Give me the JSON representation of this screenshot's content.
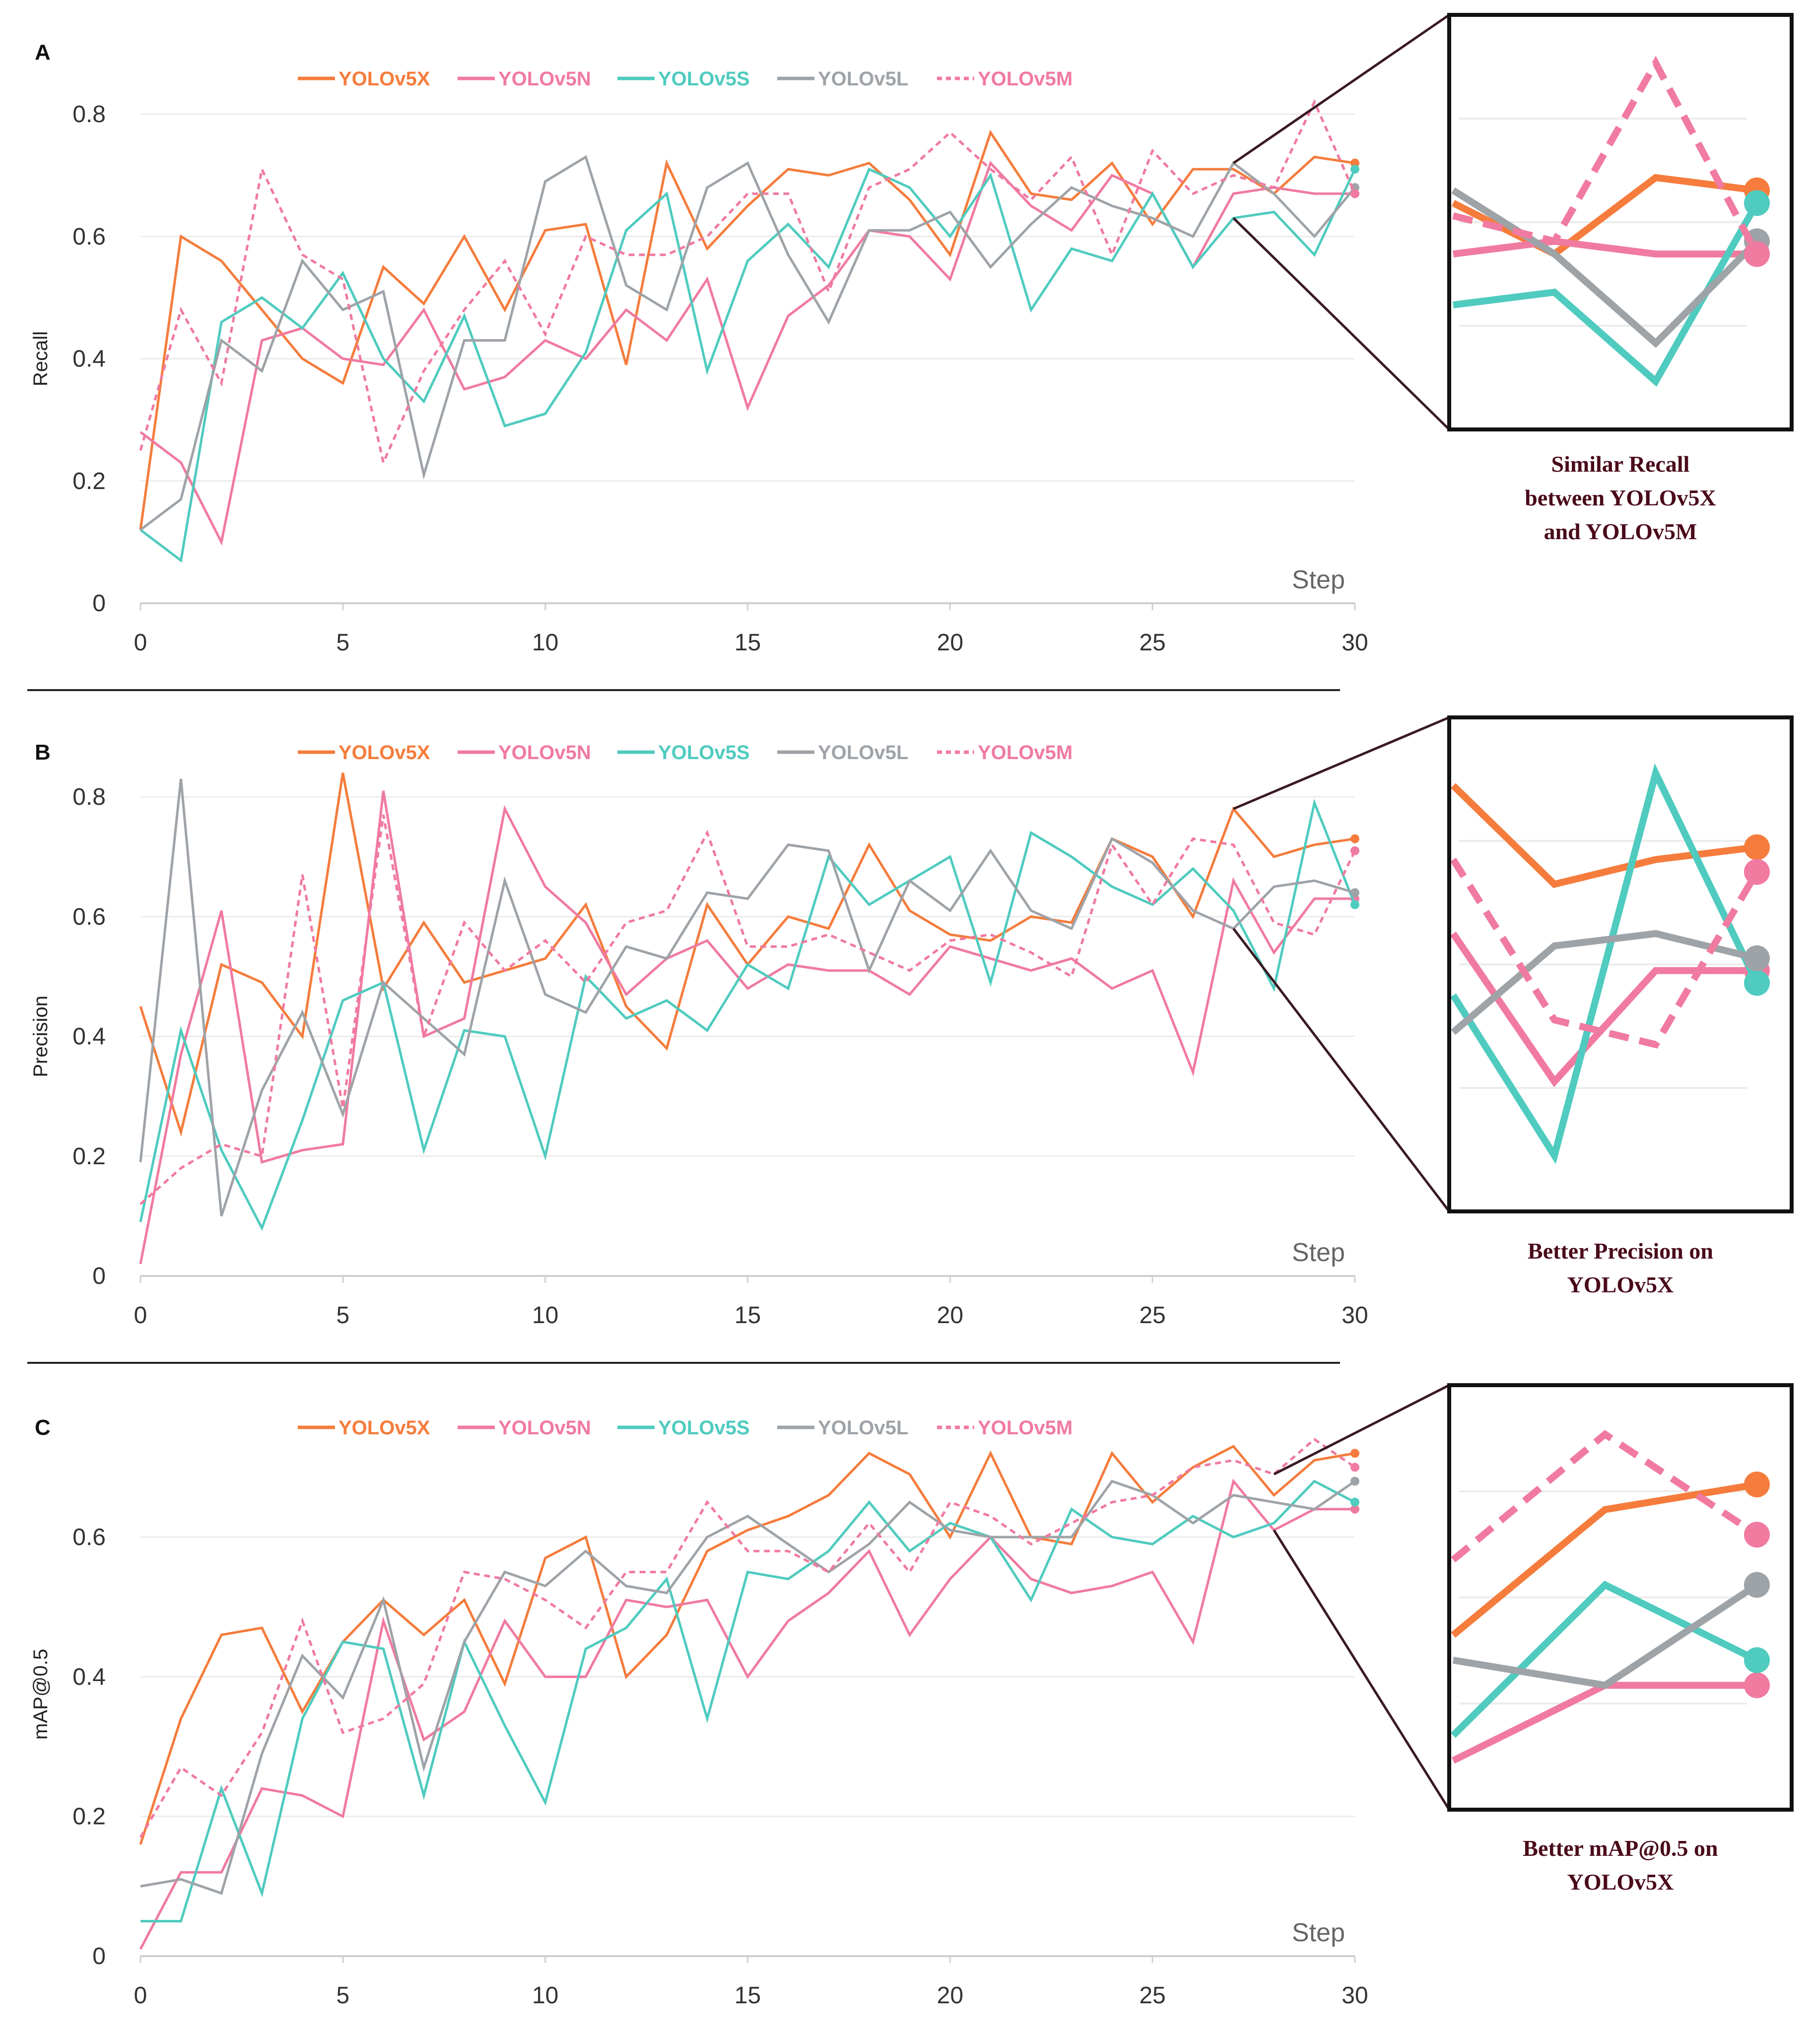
{
  "colors": {
    "YOLOv5X": "#f57c3c",
    "YOLOv5N": "#f07aa0",
    "YOLOv5S": "#4fcbbf",
    "YOLOv5L": "#9ea3a8",
    "YOLOv5M": "#f07aa0",
    "zoom_border": "#111111",
    "connector": "#3a1a22",
    "caption": "#4a0a1a"
  },
  "legend": [
    {
      "name": "YOLOv5X",
      "style": "solid"
    },
    {
      "name": "YOLOv5N",
      "style": "solid"
    },
    {
      "name": "YOLOv5S",
      "style": "solid"
    },
    {
      "name": "YOLOv5L",
      "style": "solid"
    },
    {
      "name": "YOLOv5M",
      "style": "dotted"
    }
  ],
  "chart_data": [
    {
      "panel": "A",
      "type": "line",
      "ylabel": "Recall",
      "xlabel": "Step",
      "xlim": [
        0,
        30
      ],
      "ylim": [
        0,
        0.8
      ],
      "xticks": [
        "0",
        "5",
        "10",
        "15",
        "20",
        "25",
        "30"
      ],
      "yticks": [
        "0",
        "0.2",
        "0.4",
        "0.6",
        "0.8"
      ],
      "zoom": {
        "x_range": [
          27,
          30
        ],
        "caption": [
          "Similar Recall",
          "between YOLOv5X",
          "and YOLOv5M"
        ]
      },
      "series": [
        {
          "name": "YOLOv5X",
          "values": [
            0.12,
            0.6,
            0.56,
            0.48,
            0.4,
            0.36,
            0.55,
            0.49,
            0.6,
            0.48,
            0.61,
            0.62,
            0.39,
            0.72,
            0.58,
            0.65,
            0.71,
            0.7,
            0.72,
            0.66,
            0.57,
            0.77,
            0.67,
            0.66,
            0.72,
            0.62,
            0.71,
            0.71,
            0.67,
            0.73,
            0.72
          ]
        },
        {
          "name": "YOLOv5N",
          "values": [
            0.28,
            0.23,
            0.1,
            0.43,
            0.45,
            0.4,
            0.39,
            0.48,
            0.35,
            0.37,
            0.43,
            0.4,
            0.48,
            0.43,
            0.53,
            0.32,
            0.47,
            0.52,
            0.61,
            0.6,
            0.53,
            0.72,
            0.65,
            0.61,
            0.7,
            0.67,
            0.55,
            0.67,
            0.68,
            0.67,
            0.67
          ]
        },
        {
          "name": "YOLOv5S",
          "values": [
            0.12,
            0.07,
            0.46,
            0.5,
            0.45,
            0.54,
            0.4,
            0.33,
            0.47,
            0.29,
            0.31,
            0.41,
            0.61,
            0.67,
            0.38,
            0.56,
            0.62,
            0.55,
            0.71,
            0.68,
            0.6,
            0.7,
            0.48,
            0.58,
            0.56,
            0.67,
            0.55,
            0.63,
            0.64,
            0.57,
            0.71
          ]
        },
        {
          "name": "YOLOv5L",
          "values": [
            0.12,
            0.17,
            0.43,
            0.38,
            0.56,
            0.48,
            0.51,
            0.21,
            0.43,
            0.43,
            0.69,
            0.73,
            0.52,
            0.48,
            0.68,
            0.72,
            0.57,
            0.46,
            0.61,
            0.61,
            0.64,
            0.55,
            0.62,
            0.68,
            0.65,
            0.63,
            0.6,
            0.72,
            0.67,
            0.6,
            0.68
          ]
        },
        {
          "name": "YOLOv5M",
          "values": [
            0.25,
            0.48,
            0.36,
            0.71,
            0.57,
            0.53,
            0.23,
            0.38,
            0.48,
            0.56,
            0.44,
            0.6,
            0.57,
            0.57,
            0.6,
            0.67,
            0.67,
            0.51,
            0.68,
            0.71,
            0.77,
            0.71,
            0.66,
            0.73,
            0.57,
            0.74,
            0.67,
            0.7,
            0.68,
            0.82,
            0.67
          ]
        }
      ]
    },
    {
      "panel": "B",
      "type": "line",
      "ylabel": "Precision",
      "xlabel": "Step",
      "xlim": [
        0,
        30
      ],
      "ylim": [
        0,
        0.8
      ],
      "xticks": [
        "0",
        "5",
        "10",
        "15",
        "20",
        "25",
        "30"
      ],
      "yticks": [
        "0",
        "0.2",
        "0.4",
        "0.6",
        "0.8"
      ],
      "zoom": {
        "x_range": [
          27,
          30
        ],
        "caption": [
          "Better Precision on",
          "YOLOv5X"
        ]
      },
      "series": [
        {
          "name": "YOLOv5X",
          "values": [
            0.45,
            0.24,
            0.52,
            0.49,
            0.4,
            0.84,
            0.48,
            0.59,
            0.49,
            0.51,
            0.53,
            0.62,
            0.45,
            0.38,
            0.62,
            0.52,
            0.6,
            0.58,
            0.72,
            0.61,
            0.57,
            0.56,
            0.6,
            0.59,
            0.73,
            0.7,
            0.6,
            0.78,
            0.7,
            0.72,
            0.73
          ]
        },
        {
          "name": "YOLOv5N",
          "values": [
            0.02,
            0.37,
            0.61,
            0.19,
            0.21,
            0.22,
            0.81,
            0.4,
            0.43,
            0.78,
            0.65,
            0.59,
            0.47,
            0.53,
            0.56,
            0.48,
            0.52,
            0.51,
            0.51,
            0.47,
            0.55,
            0.53,
            0.51,
            0.53,
            0.48,
            0.51,
            0.34,
            0.66,
            0.54,
            0.63,
            0.63
          ]
        },
        {
          "name": "YOLOv5S",
          "values": [
            0.09,
            0.41,
            0.21,
            0.08,
            0.26,
            0.46,
            0.49,
            0.21,
            0.41,
            0.4,
            0.2,
            0.5,
            0.43,
            0.46,
            0.41,
            0.52,
            0.48,
            0.7,
            0.62,
            0.66,
            0.7,
            0.49,
            0.74,
            0.7,
            0.65,
            0.62,
            0.68,
            0.61,
            0.48,
            0.79,
            0.62
          ]
        },
        {
          "name": "YOLOv5L",
          "values": [
            0.19,
            0.83,
            0.1,
            0.31,
            0.44,
            0.27,
            0.49,
            0.43,
            0.37,
            0.66,
            0.47,
            0.44,
            0.55,
            0.53,
            0.64,
            0.63,
            0.72,
            0.71,
            0.51,
            0.66,
            0.61,
            0.71,
            0.61,
            0.58,
            0.73,
            0.69,
            0.61,
            0.58,
            0.65,
            0.66,
            0.64
          ]
        },
        {
          "name": "YOLOv5M",
          "values": [
            0.12,
            0.18,
            0.22,
            0.2,
            0.67,
            0.28,
            0.77,
            0.4,
            0.59,
            0.51,
            0.56,
            0.49,
            0.59,
            0.61,
            0.74,
            0.55,
            0.55,
            0.57,
            0.54,
            0.51,
            0.56,
            0.57,
            0.54,
            0.5,
            0.72,
            0.62,
            0.73,
            0.72,
            0.59,
            0.57,
            0.71
          ]
        }
      ]
    },
    {
      "panel": "C",
      "type": "line",
      "ylabel": "mAP@0.5",
      "xlabel": "Step",
      "xlim": [
        0,
        30
      ],
      "ylim": [
        0,
        0.75
      ],
      "xticks": [
        "0",
        "5",
        "10",
        "15",
        "20",
        "25",
        "30"
      ],
      "yticks": [
        "0",
        "0.2",
        "0.4",
        "0.6"
      ],
      "zoom": {
        "x_range": [
          28,
          30
        ],
        "caption": [
          "Better mAP@0.5 on",
          "YOLOv5X"
        ]
      },
      "series": [
        {
          "name": "YOLOv5X",
          "values": [
            0.16,
            0.34,
            0.46,
            0.47,
            0.35,
            0.45,
            0.51,
            0.46,
            0.51,
            0.39,
            0.57,
            0.6,
            0.4,
            0.46,
            0.58,
            0.61,
            0.63,
            0.66,
            0.72,
            0.69,
            0.6,
            0.72,
            0.6,
            0.59,
            0.72,
            0.65,
            0.7,
            0.73,
            0.66,
            0.71,
            0.72
          ]
        },
        {
          "name": "YOLOv5N",
          "values": [
            0.01,
            0.12,
            0.12,
            0.24,
            0.23,
            0.2,
            0.48,
            0.31,
            0.35,
            0.48,
            0.4,
            0.4,
            0.51,
            0.5,
            0.51,
            0.4,
            0.48,
            0.52,
            0.58,
            0.46,
            0.54,
            0.6,
            0.54,
            0.52,
            0.53,
            0.55,
            0.45,
            0.68,
            0.61,
            0.64,
            0.64
          ]
        },
        {
          "name": "YOLOv5S",
          "values": [
            0.05,
            0.05,
            0.24,
            0.09,
            0.34,
            0.45,
            0.44,
            0.23,
            0.45,
            0.33,
            0.22,
            0.44,
            0.47,
            0.54,
            0.34,
            0.55,
            0.54,
            0.58,
            0.65,
            0.58,
            0.62,
            0.6,
            0.51,
            0.64,
            0.6,
            0.59,
            0.63,
            0.6,
            0.62,
            0.68,
            0.65
          ]
        },
        {
          "name": "YOLOv5L",
          "values": [
            0.1,
            0.11,
            0.09,
            0.29,
            0.43,
            0.37,
            0.51,
            0.27,
            0.45,
            0.55,
            0.53,
            0.58,
            0.53,
            0.52,
            0.6,
            0.63,
            0.59,
            0.55,
            0.59,
            0.65,
            0.61,
            0.6,
            0.6,
            0.6,
            0.68,
            0.66,
            0.62,
            0.66,
            0.65,
            0.64,
            0.68
          ]
        },
        {
          "name": "YOLOv5M",
          "values": [
            0.17,
            0.27,
            0.23,
            0.32,
            0.48,
            0.32,
            0.34,
            0.39,
            0.55,
            0.54,
            0.51,
            0.47,
            0.55,
            0.55,
            0.65,
            0.58,
            0.58,
            0.55,
            0.62,
            0.55,
            0.65,
            0.63,
            0.59,
            0.62,
            0.65,
            0.66,
            0.7,
            0.71,
            0.69,
            0.74,
            0.7
          ]
        }
      ]
    }
  ]
}
